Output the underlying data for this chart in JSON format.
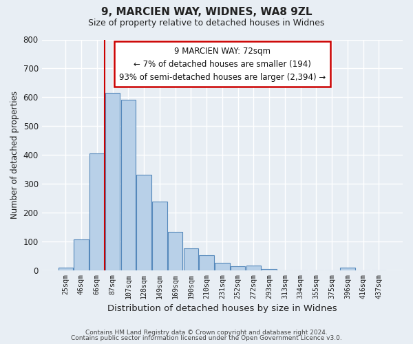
{
  "title": "9, MARCIEN WAY, WIDNES, WA8 9ZL",
  "subtitle": "Size of property relative to detached houses in Widnes",
  "xlabel": "Distribution of detached houses by size in Widnes",
  "ylabel": "Number of detached properties",
  "bar_labels": [
    "25sqm",
    "46sqm",
    "66sqm",
    "87sqm",
    "107sqm",
    "128sqm",
    "149sqm",
    "169sqm",
    "190sqm",
    "210sqm",
    "231sqm",
    "252sqm",
    "272sqm",
    "293sqm",
    "313sqm",
    "334sqm",
    "355sqm",
    "375sqm",
    "396sqm",
    "416sqm",
    "437sqm"
  ],
  "bar_values": [
    8,
    107,
    405,
    615,
    591,
    330,
    237,
    133,
    77,
    51,
    25,
    13,
    17,
    4,
    0,
    0,
    0,
    0,
    8,
    0,
    0
  ],
  "bar_color": "#b8d0e8",
  "bar_edge_color": "#5588bb",
  "vline_x": 2.5,
  "vline_color": "#cc0000",
  "ylim": [
    0,
    800
  ],
  "yticks": [
    0,
    100,
    200,
    300,
    400,
    500,
    600,
    700,
    800
  ],
  "annotation_title": "9 MARCIEN WAY: 72sqm",
  "annotation_line1": "← 7% of detached houses are smaller (194)",
  "annotation_line2": "93% of semi-detached houses are larger (2,394) →",
  "annotation_box_color": "#ffffff",
  "annotation_box_edge": "#cc0000",
  "footer1": "Contains HM Land Registry data © Crown copyright and database right 2024.",
  "footer2": "Contains public sector information licensed under the Open Government Licence v3.0.",
  "background_color": "#e8eef4",
  "grid_color": "#ffffff"
}
